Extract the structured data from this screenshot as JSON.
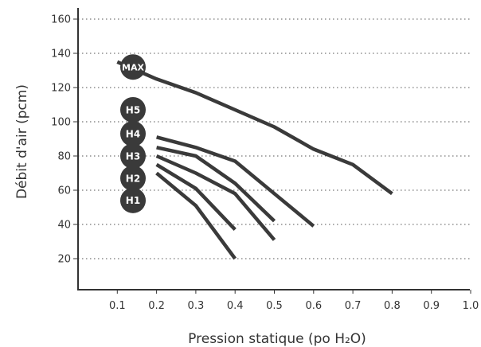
{
  "chart_data": {
    "type": "line",
    "xlabel": "Pression statique (po H₂O)",
    "ylabel": "Débit d'air (pcm)",
    "xlim": [
      0,
      1.0
    ],
    "ylim": [
      0,
      165
    ],
    "x_ticks": [
      "0.1",
      "0.2",
      "0.3",
      "0.4",
      "0.5",
      "0.6",
      "0.7",
      "0.8",
      "0.9",
      "1.0"
    ],
    "y_ticks": [
      "20",
      "40",
      "60",
      "80",
      "100",
      "120",
      "140",
      "160"
    ],
    "grid": "horizontal dotted",
    "series": [
      {
        "name": "MAX",
        "x": [
          0.1,
          0.2,
          0.3,
          0.4,
          0.5,
          0.6,
          0.7,
          0.8
        ],
        "y": [
          135,
          125,
          117,
          107,
          97,
          84,
          75,
          58
        ]
      },
      {
        "name": "H5",
        "x": [],
        "y": []
      },
      {
        "name": "H4",
        "x": [
          0.2,
          0.3,
          0.4,
          0.5,
          0.6
        ],
        "y": [
          91,
          85,
          77,
          58,
          39
        ]
      },
      {
        "name": "H3",
        "x": [
          0.2,
          0.3,
          0.4,
          0.5
        ],
        "y": [
          85,
          80,
          64,
          42
        ]
      },
      {
        "name": "H2",
        "x": [
          0.2,
          0.3,
          0.4,
          0.5
        ],
        "y": [
          80,
          70,
          58,
          31
        ]
      },
      {
        "name": "H1",
        "x": [
          0.2,
          0.3,
          0.4
        ],
        "y": [
          70,
          51,
          20
        ]
      },
      {
        "name": "",
        "x": [
          0.2,
          0.3,
          0.4
        ],
        "y": [
          75,
          61,
          37
        ]
      }
    ],
    "badges": [
      {
        "label": "MAX",
        "y": 132
      },
      {
        "label": "H5",
        "y": 107
      },
      {
        "label": "H4",
        "y": 93
      },
      {
        "label": "H3",
        "y": 80
      },
      {
        "label": "H2",
        "y": 67
      },
      {
        "label": "H1",
        "y": 54
      }
    ],
    "colors": {
      "line": "#3a3a3a",
      "badge_fill": "#3a3a3a",
      "badge_text": "#ffffff",
      "grid": "#555555",
      "axis": "#333333"
    }
  }
}
